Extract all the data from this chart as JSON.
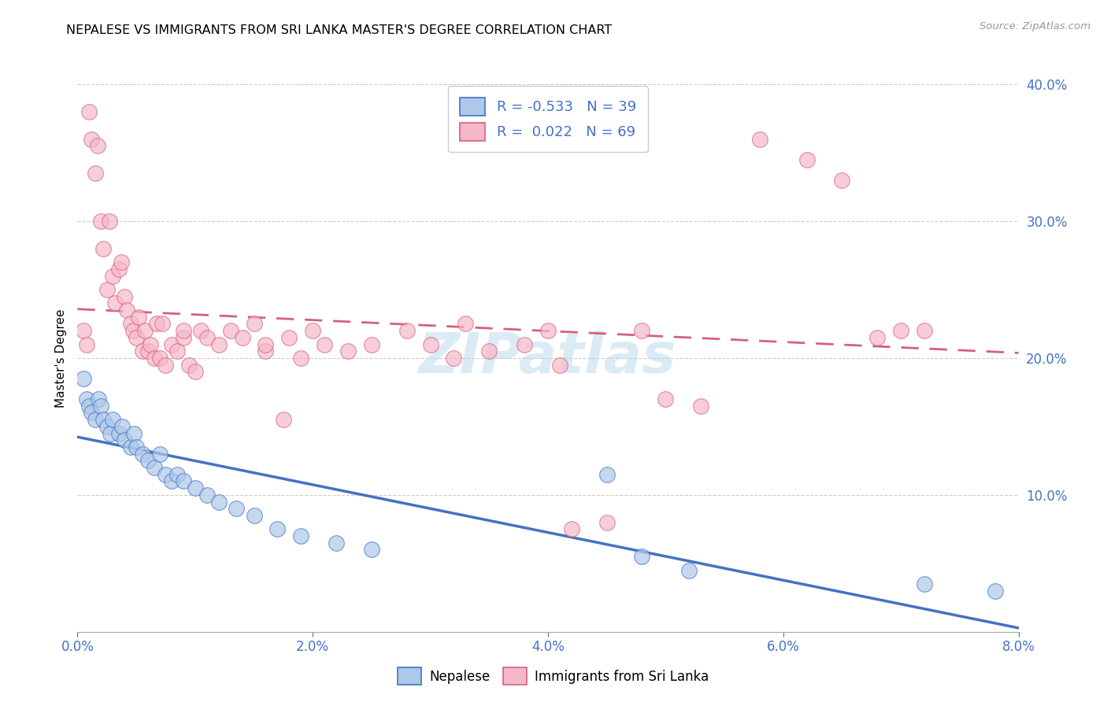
{
  "title": "NEPALESE VS IMMIGRANTS FROM SRI LANKA MASTER'S DEGREE CORRELATION CHART",
  "source": "Source: ZipAtlas.com",
  "ylabel": "Master's Degree",
  "blue_label": "Nepalese",
  "pink_label": "Immigrants from Sri Lanka",
  "blue_R": -0.533,
  "blue_N": 39,
  "pink_R": 0.022,
  "pink_N": 69,
  "blue_color": "#adc8e8",
  "pink_color": "#f5b8c8",
  "blue_line_color": "#4472c4",
  "pink_line_color": "#d46080",
  "watermark": "ZIPatlas",
  "x_min": 0.0,
  "x_max": 8.0,
  "y_min": 0.0,
  "y_max": 40.0,
  "blue_x": [
    0.05,
    0.08,
    0.1,
    0.12,
    0.15,
    0.18,
    0.2,
    0.22,
    0.25,
    0.28,
    0.3,
    0.35,
    0.38,
    0.4,
    0.45,
    0.48,
    0.5,
    0.55,
    0.6,
    0.65,
    0.7,
    0.75,
    0.8,
    0.85,
    0.9,
    1.0,
    1.1,
    1.2,
    1.35,
    1.5,
    1.7,
    1.9,
    2.2,
    2.5,
    4.5,
    4.8,
    5.2,
    7.2,
    7.8
  ],
  "blue_y": [
    18.5,
    17.0,
    16.5,
    16.0,
    15.5,
    17.0,
    16.5,
    15.5,
    15.0,
    14.5,
    15.5,
    14.5,
    15.0,
    14.0,
    13.5,
    14.5,
    13.5,
    13.0,
    12.5,
    12.0,
    13.0,
    11.5,
    11.0,
    11.5,
    11.0,
    10.5,
    10.0,
    9.5,
    9.0,
    8.5,
    7.5,
    7.0,
    6.5,
    6.0,
    11.5,
    5.5,
    4.5,
    3.5,
    3.0
  ],
  "pink_x": [
    0.05,
    0.08,
    0.1,
    0.12,
    0.15,
    0.17,
    0.2,
    0.22,
    0.25,
    0.27,
    0.3,
    0.32,
    0.35,
    0.37,
    0.4,
    0.42,
    0.45,
    0.47,
    0.5,
    0.52,
    0.55,
    0.57,
    0.6,
    0.62,
    0.65,
    0.67,
    0.7,
    0.72,
    0.75,
    0.8,
    0.85,
    0.9,
    0.95,
    1.0,
    1.05,
    1.1,
    1.2,
    1.3,
    1.4,
    1.5,
    1.6,
    1.75,
    1.9,
    2.1,
    2.3,
    2.5,
    2.8,
    3.0,
    3.3,
    3.5,
    3.8,
    4.0,
    4.2,
    4.5,
    4.8,
    5.0,
    5.3,
    5.8,
    6.2,
    6.5,
    6.8,
    7.0,
    7.2,
    3.2,
    4.1,
    2.0,
    1.8,
    0.9,
    1.6
  ],
  "pink_y": [
    22.0,
    21.0,
    38.0,
    36.0,
    33.5,
    35.5,
    30.0,
    28.0,
    25.0,
    30.0,
    26.0,
    24.0,
    26.5,
    27.0,
    24.5,
    23.5,
    22.5,
    22.0,
    21.5,
    23.0,
    20.5,
    22.0,
    20.5,
    21.0,
    20.0,
    22.5,
    20.0,
    22.5,
    19.5,
    21.0,
    20.5,
    21.5,
    19.5,
    19.0,
    22.0,
    21.5,
    21.0,
    22.0,
    21.5,
    22.5,
    20.5,
    15.5,
    20.0,
    21.0,
    20.5,
    21.0,
    22.0,
    21.0,
    22.5,
    20.5,
    21.0,
    22.0,
    7.5,
    8.0,
    22.0,
    17.0,
    16.5,
    36.0,
    34.5,
    33.0,
    21.5,
    22.0,
    22.0,
    20.0,
    19.5,
    22.0,
    21.5,
    22.0,
    21.0
  ]
}
